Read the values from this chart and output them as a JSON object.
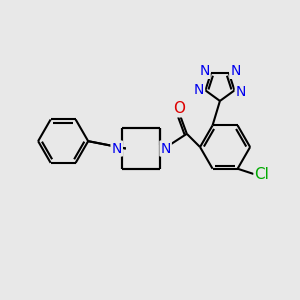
{
  "bg_color": "#e8e8e8",
  "bond_color": "#000000",
  "N_color": "#0000ee",
  "O_color": "#dd0000",
  "Cl_color": "#00aa00",
  "lw": 1.5,
  "fs": 10,
  "fig_size": [
    3.0,
    3.0
  ],
  "dpi": 100,
  "xlim": [
    0,
    10
  ],
  "ylim": [
    0,
    10
  ]
}
